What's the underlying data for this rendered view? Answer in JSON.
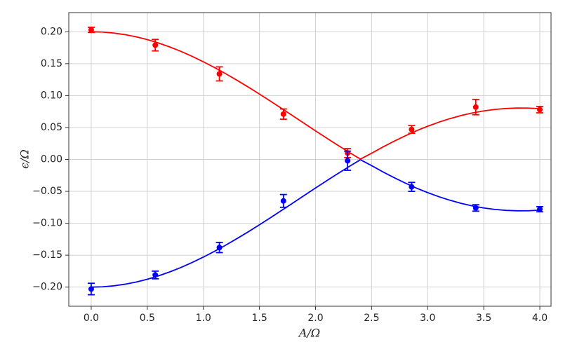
{
  "chart_data": {
    "type": "line",
    "xlabel": "A/Ω",
    "ylabel": "ϵ/Ω",
    "xlim": [
      -0.2,
      4.1
    ],
    "ylim": [
      -0.23,
      0.23
    ],
    "xticks": [
      {
        "value": 0,
        "label": "0.0"
      },
      {
        "value": 0.5,
        "label": "0.5"
      },
      {
        "value": 1,
        "label": "1.0"
      },
      {
        "value": 1.5,
        "label": "1.5"
      },
      {
        "value": 2,
        "label": "2.0"
      },
      {
        "value": 2.5,
        "label": "2.5"
      },
      {
        "value": 3,
        "label": "3.0"
      },
      {
        "value": 3.5,
        "label": "3.5"
      },
      {
        "value": 4,
        "label": "4.0"
      }
    ],
    "yticks": [
      {
        "value": -0.2,
        "label": "−0.20"
      },
      {
        "value": -0.15,
        "label": "−0.15"
      },
      {
        "value": -0.1,
        "label": "−0.10"
      },
      {
        "value": -0.05,
        "label": "−0.05"
      },
      {
        "value": 0,
        "label": "0.00"
      },
      {
        "value": 0.05,
        "label": "0.05"
      },
      {
        "value": 0.1,
        "label": "0.10"
      },
      {
        "value": 0.15,
        "label": "0.15"
      },
      {
        "value": 0.2,
        "label": "0.20"
      }
    ],
    "grid": true,
    "x": [
      0,
      0.1,
      0.2,
      0.3,
      0.4,
      0.5,
      0.6,
      0.7,
      0.8,
      0.9,
      1.0,
      1.1,
      1.2,
      1.3,
      1.4,
      1.5,
      1.6,
      1.7,
      1.8,
      1.9,
      2.0,
      2.1,
      2.2,
      2.3,
      2.4,
      2.5,
      2.6,
      2.7,
      2.8,
      2.9,
      3.0,
      3.1,
      3.2,
      3.3,
      3.4,
      3.5,
      3.6,
      3.7,
      3.8,
      3.9,
      4.0
    ],
    "series": [
      {
        "color": "#ff0000",
        "values": [
          0.2,
          0.1995,
          0.198,
          0.1955,
          0.1921,
          0.1877,
          0.1824,
          0.1762,
          0.1693,
          0.1615,
          0.153,
          0.1439,
          0.1342,
          0.124,
          0.1134,
          0.1024,
          0.0911,
          0.0796,
          0.068,
          0.0564,
          0.0448,
          0.0333,
          0.0221,
          0.0111,
          0.0005,
          0.0097,
          0.0194,
          0.0285,
          0.037,
          0.0449,
          0.052,
          0.0584,
          0.064,
          0.0689,
          0.0729,
          0.076,
          0.0784,
          0.0798,
          0.0805,
          0.0804,
          0.0794
        ]
      },
      {
        "color": "#0000ff",
        "values": [
          -0.2,
          -0.1995,
          -0.198,
          -0.1955,
          -0.1921,
          -0.1877,
          -0.1824,
          -0.1762,
          -0.1693,
          -0.1615,
          -0.153,
          -0.1439,
          -0.1342,
          -0.124,
          -0.1134,
          -0.1024,
          -0.0911,
          -0.0796,
          -0.068,
          -0.0564,
          -0.0448,
          -0.0333,
          -0.0221,
          -0.0111,
          -0.0005,
          -0.0097,
          -0.0194,
          -0.0285,
          -0.037,
          -0.0449,
          -0.052,
          -0.0584,
          -0.064,
          -0.0689,
          -0.0729,
          -0.076,
          -0.0784,
          -0.0798,
          -0.0805,
          -0.0804,
          -0.0794
        ]
      }
    ],
    "points": {
      "type": "errorbar",
      "x": [
        0,
        0.571,
        1.143,
        1.714,
        2.286,
        2.857,
        3.429,
        4.0
      ],
      "series": [
        {
          "color": "#ff0000",
          "values": [
            0.203,
            0.179,
            0.134,
            0.071,
            0.01,
            0.047,
            0.082,
            0.078
          ],
          "errors": [
            0.004,
            0.009,
            0.011,
            0.008,
            0.007,
            0.006,
            0.012,
            0.005
          ]
        },
        {
          "color": "#0000ff",
          "values": [
            -0.203,
            -0.181,
            -0.138,
            -0.065,
            -0.002,
            -0.043,
            -0.076,
            -0.078
          ],
          "errors": [
            0.009,
            0.006,
            0.008,
            0.01,
            0.015,
            0.007,
            0.005,
            0.004
          ]
        }
      ]
    }
  }
}
